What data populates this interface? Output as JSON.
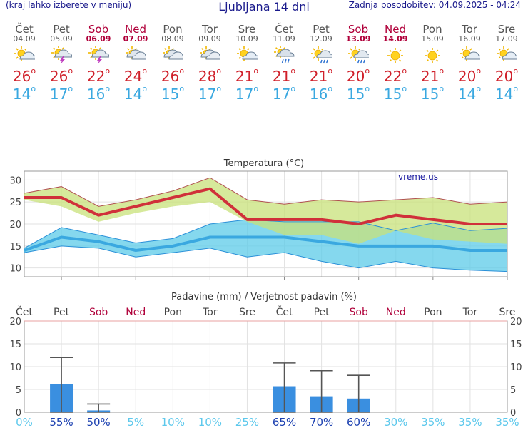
{
  "header": {
    "menu_hint": "(kraj lahko izberete v meniju)",
    "title": "Ljubljana 14 dni",
    "updated": "Zadnja posodobitev: 04.09.2025 - 04:24"
  },
  "days": [
    {
      "name": "Čet",
      "date": "04.09",
      "weekend": false,
      "icon": "partly-cloudy-icon",
      "tmax": "26",
      "tmin": "14"
    },
    {
      "name": "Pet",
      "date": "05.09",
      "weekend": false,
      "icon": "thunderstorm-icon",
      "tmax": "26",
      "tmin": "17"
    },
    {
      "name": "Sob",
      "date": "06.09",
      "weekend": true,
      "icon": "thunderstorm-icon",
      "tmax": "22",
      "tmin": "16"
    },
    {
      "name": "Ned",
      "date": "07.09",
      "weekend": true,
      "icon": "cloudy-icon",
      "tmax": "24",
      "tmin": "14"
    },
    {
      "name": "Pon",
      "date": "08.09",
      "weekend": false,
      "icon": "cloudy-icon",
      "tmax": "26",
      "tmin": "15"
    },
    {
      "name": "Tor",
      "date": "09.09",
      "weekend": false,
      "icon": "cloudy-icon",
      "tmax": "28",
      "tmin": "17"
    },
    {
      "name": "Sre",
      "date": "10.09",
      "weekend": false,
      "icon": "partly-cloudy-icon",
      "tmax": "21",
      "tmin": "17"
    },
    {
      "name": "Čet",
      "date": "11.09",
      "weekend": false,
      "icon": "rain-cloud-icon",
      "tmax": "21",
      "tmin": "17"
    },
    {
      "name": "Pet",
      "date": "12.09",
      "weekend": false,
      "icon": "sun-rain-icon",
      "tmax": "21",
      "tmin": "16"
    },
    {
      "name": "Sob",
      "date": "13.09",
      "weekend": true,
      "icon": "sun-rain-icon",
      "tmax": "20",
      "tmin": "15"
    },
    {
      "name": "Ned",
      "date": "14.09",
      "weekend": true,
      "icon": "sun-icon",
      "tmax": "22",
      "tmin": "15"
    },
    {
      "name": "Pon",
      "date": "15.09",
      "weekend": false,
      "icon": "sun-icon",
      "tmax": "21",
      "tmin": "15"
    },
    {
      "name": "Tor",
      "date": "16.09",
      "weekend": false,
      "icon": "partly-cloudy-icon",
      "tmax": "20",
      "tmin": "14"
    },
    {
      "name": "Sre",
      "date": "17.09",
      "weekend": false,
      "icon": "partly-cloudy-icon",
      "tmax": "20",
      "tmin": "14"
    }
  ],
  "colors": {
    "max_line": "#d0303a",
    "min_line": "#3aa8e0",
    "max_band": "#c8e27a",
    "min_band": "#5ccbe8",
    "precip_bar": "#3a8fe0",
    "weekend": "#b0003a",
    "brand": "#1a1a8c"
  },
  "chart_data": [
    {
      "type": "line",
      "title": "Temperatura (°C)",
      "watermark": "vreme.us",
      "categories": [
        "04.09",
        "05.09",
        "06.09",
        "07.09",
        "08.09",
        "09.09",
        "10.09",
        "11.09",
        "12.09",
        "13.09",
        "14.09",
        "15.09",
        "16.09",
        "17.09"
      ],
      "ylim": [
        8,
        32
      ],
      "yticks": [
        10,
        15,
        20,
        25,
        30
      ],
      "grid": true,
      "series": [
        {
          "values": [
            26,
            26,
            22,
            24,
            26,
            28,
            21,
            21,
            21,
            20,
            22,
            21,
            20,
            20
          ]
        },
        {
          "values": [
            14,
            17,
            16,
            14,
            15,
            17,
            17,
            17,
            16,
            15,
            15,
            15,
            14,
            14
          ]
        }
      ],
      "max_range_high": [
        27,
        28.5,
        24,
        25.5,
        27.5,
        30.5,
        25.5,
        24.5,
        25.5,
        25,
        25.5,
        26,
        24.5,
        25
      ],
      "max_range_low": [
        25.5,
        24,
        20.5,
        22.5,
        24,
        25,
        20.5,
        17.5,
        17.5,
        15.5,
        18.5,
        16.5,
        16,
        15.5
      ],
      "min_range_high": [
        14.5,
        19.2,
        17.5,
        15.7,
        16.7,
        20,
        21,
        20.5,
        20.5,
        20.5,
        18.5,
        20.2,
        18.5,
        19
      ],
      "min_range_low": [
        13.5,
        15,
        14.5,
        12.5,
        13.5,
        14.5,
        12.5,
        13.5,
        11.5,
        10,
        11.5,
        10,
        9.5,
        9.2
      ]
    },
    {
      "type": "bar",
      "title": "Padavine (mm) / Verjetnost padavin (%)",
      "categories": [
        "Čet",
        "Pet",
        "Sob",
        "Ned",
        "Pon",
        "Tor",
        "Sre",
        "Čet",
        "Pet",
        "Sob",
        "Ned",
        "Pon",
        "Tor",
        "Sre"
      ],
      "weekend": [
        false,
        false,
        true,
        true,
        false,
        false,
        false,
        false,
        false,
        true,
        true,
        false,
        false,
        false
      ],
      "ylim": [
        0,
        20
      ],
      "yticks": [
        0,
        5,
        10,
        15,
        20
      ],
      "values": [
        0,
        6.2,
        0.4,
        0,
        0,
        0,
        0,
        5.7,
        3.5,
        3.0,
        0,
        0,
        0,
        0
      ],
      "error_high": [
        0,
        12,
        1.8,
        0,
        0,
        0,
        0,
        10.8,
        9.1,
        8.1,
        0,
        0,
        0,
        0
      ],
      "probability": [
        "0%",
        "55%",
        "50%",
        "5%",
        "10%",
        "10%",
        "25%",
        "65%",
        "70%",
        "60%",
        "30%",
        "35%",
        "35%",
        "35%"
      ],
      "probability_strong": [
        false,
        true,
        true,
        false,
        false,
        false,
        false,
        true,
        true,
        true,
        false,
        false,
        false,
        false
      ]
    }
  ]
}
